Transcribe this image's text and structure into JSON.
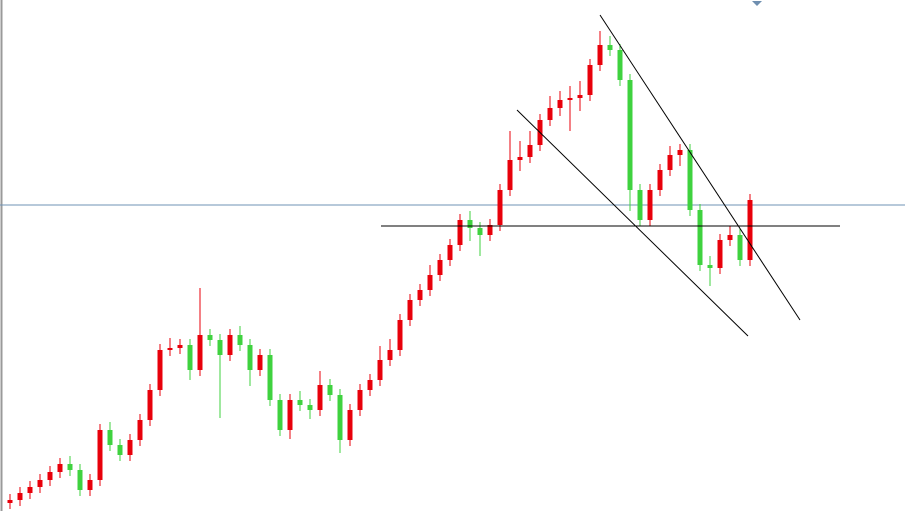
{
  "chart_data": {
    "type": "candlestick",
    "xlim": [
      -1,
      89.5
    ],
    "ylim": [
      0,
      511
    ],
    "up_color": "#e8000b",
    "down_color": "#3fd23f",
    "open": [
      8,
      11,
      18,
      24,
      31,
      39,
      47,
      41,
      21,
      31,
      81,
      66,
      56,
      71,
      91,
      121,
      161,
      163,
      166,
      141,
      176,
      171,
      156,
      176,
      166,
      141,
      156,
      111,
      81,
      111,
      106,
      101,
      126,
      116,
      71,
      101,
      121,
      131,
      151,
      161,
      191,
      211,
      221,
      236,
      251,
      266,
      291,
      283,
      276,
      286,
      321,
      351,
      354,
      366,
      391,
      403,
      411,
      413,
      416,
      446,
      466,
      461,
      431,
      321,
      291,
      321,
      341,
      356,
      361,
      301,
      246,
      243,
      271,
      276,
      251
    ],
    "high": [
      17,
      24,
      30,
      37,
      45,
      53,
      55,
      47,
      37,
      87,
      89,
      72,
      77,
      97,
      127,
      167,
      173,
      172,
      172,
      223,
      182,
      177,
      182,
      185,
      172,
      162,
      162,
      117,
      117,
      120,
      112,
      140,
      132,
      122,
      107,
      127,
      137,
      165,
      172,
      197,
      217,
      227,
      246,
      257,
      272,
      297,
      300,
      289,
      292,
      327,
      380,
      370,
      380,
      397,
      415,
      420,
      425,
      430,
      452,
      480,
      475,
      467,
      437,
      327,
      327,
      347,
      365,
      367,
      367,
      307,
      255,
      277,
      285,
      282,
      317
    ],
    "low": [
      2,
      5,
      12,
      18,
      25,
      33,
      35,
      15,
      15,
      25,
      60,
      50,
      50,
      65,
      85,
      115,
      155,
      157,
      131,
      135,
      165,
      93,
      150,
      160,
      125,
      135,
      105,
      75,
      72,
      100,
      92,
      95,
      110,
      58,
      65,
      95,
      115,
      125,
      145,
      155,
      185,
      205,
      215,
      230,
      245,
      260,
      270,
      255,
      270,
      280,
      315,
      340,
      348,
      360,
      385,
      395,
      380,
      400,
      410,
      440,
      455,
      425,
      300,
      285,
      285,
      315,
      335,
      345,
      295,
      240,
      225,
      237,
      265,
      245,
      245
    ],
    "close": [
      11,
      18,
      24,
      31,
      39,
      47,
      41,
      21,
      31,
      81,
      66,
      56,
      71,
      91,
      121,
      161,
      163,
      166,
      141,
      176,
      171,
      156,
      176,
      166,
      141,
      156,
      111,
      81,
      111,
      106,
      101,
      126,
      116,
      71,
      101,
      121,
      131,
      151,
      161,
      191,
      211,
      221,
      236,
      251,
      266,
      291,
      283,
      276,
      286,
      321,
      351,
      354,
      366,
      391,
      403,
      411,
      413,
      416,
      446,
      466,
      461,
      431,
      321,
      291,
      321,
      341,
      356,
      361,
      301,
      246,
      243,
      271,
      276,
      251,
      311
    ],
    "hlines": [
      {
        "value": 306,
        "color": "#6f93b5"
      }
    ],
    "trendlines": [
      {
        "x": [
          59,
          79
        ],
        "y": [
          496,
          191
        ],
        "color": "#000000"
      },
      {
        "x": [
          50.7,
          73.8
        ],
        "y": [
          401,
          175
        ],
        "color": "#000000"
      },
      {
        "x": [
          37.1,
          83
        ],
        "y": [
          285,
          285
        ],
        "color": "#000000"
      }
    ]
  }
}
